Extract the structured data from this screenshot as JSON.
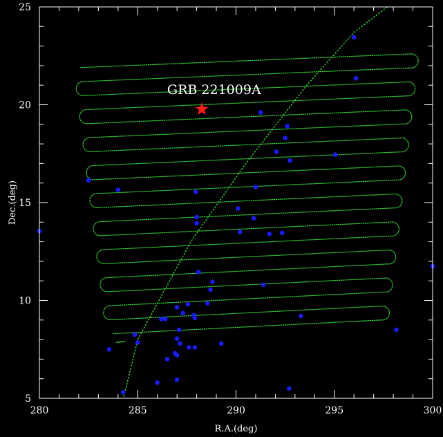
{
  "chart_data": {
    "type": "scatter",
    "title": "",
    "xlabel": "R.A.(deg)",
    "ylabel": "Dec.(deg)",
    "xlim": [
      280,
      300
    ],
    "ylim": [
      5,
      25
    ],
    "xticks": [
      "280",
      "285",
      "290",
      "295",
      "300"
    ],
    "yticks": [
      "5",
      "10",
      "15",
      "20",
      "25"
    ],
    "grid": false,
    "background": "#000000",
    "annotation": {
      "text": "GRB 221009A",
      "x": 286.5,
      "y": 20.8
    },
    "grb": {
      "name": "GRB 221009A",
      "ra": 288.26,
      "dec": 19.77,
      "color": "#ff1a1a",
      "marker": "star"
    },
    "scan_pattern": {
      "color": "#33cc33",
      "style": "dotted",
      "rows": 20,
      "dec_start": 8.3,
      "dec_end": 21.9,
      "left_start_ra": 283.75,
      "left_end_ra": 282.1,
      "right_start_ra": 297.4,
      "right_end_ra": 298.95,
      "row_tilt_dec": 0.7
    },
    "diagonal_track": {
      "color": "#33cc33",
      "style": "dotted",
      "points": [
        [
          284.3,
          5.1
        ],
        [
          285.0,
          8.0
        ],
        [
          287.7,
          13.0
        ],
        [
          290.5,
          17.0
        ],
        [
          293.6,
          21.0
        ],
        [
          296.0,
          23.7
        ],
        [
          299.0,
          26.0
        ]
      ]
    },
    "start_segment": {
      "color": "#33cc33",
      "points": [
        [
          283.9,
          7.85
        ],
        [
          284.35,
          7.9
        ]
      ]
    },
    "series": [
      {
        "name": "",
        "color": "#1a1aff",
        "points": [
          [
            280.0,
            13.55
          ],
          [
            282.5,
            16.15
          ],
          [
            283.55,
            7.5
          ],
          [
            284.0,
            15.65
          ],
          [
            284.25,
            5.3
          ],
          [
            284.85,
            8.25
          ],
          [
            285.0,
            7.85
          ],
          [
            286.0,
            5.8
          ],
          [
            286.2,
            9.05
          ],
          [
            286.4,
            9.05
          ],
          [
            286.5,
            7.0
          ],
          [
            286.9,
            7.3
          ],
          [
            287.0,
            7.2
          ],
          [
            287.0,
            5.95
          ],
          [
            287.0,
            9.65
          ],
          [
            287.0,
            8.05
          ],
          [
            287.1,
            8.5
          ],
          [
            287.15,
            7.8
          ],
          [
            287.3,
            9.35
          ],
          [
            287.55,
            9.8
          ],
          [
            287.6,
            7.6
          ],
          [
            287.85,
            9.25
          ],
          [
            287.9,
            9.1
          ],
          [
            287.9,
            7.6
          ],
          [
            287.95,
            15.55
          ],
          [
            288.0,
            14.25
          ],
          [
            288.0,
            13.95
          ],
          [
            288.1,
            11.45
          ],
          [
            288.55,
            9.85
          ],
          [
            288.7,
            10.55
          ],
          [
            288.8,
            10.95
          ],
          [
            289.25,
            7.8
          ],
          [
            290.1,
            14.7
          ],
          [
            290.2,
            13.5
          ],
          [
            290.9,
            14.2
          ],
          [
            291.0,
            15.8
          ],
          [
            291.25,
            19.6
          ],
          [
            291.4,
            10.8
          ],
          [
            291.7,
            13.4
          ],
          [
            292.05,
            17.6
          ],
          [
            292.35,
            13.45
          ],
          [
            292.5,
            18.3
          ],
          [
            292.6,
            18.9
          ],
          [
            292.7,
            5.5
          ],
          [
            292.75,
            17.15
          ],
          [
            293.3,
            9.2
          ],
          [
            295.05,
            17.45
          ],
          [
            296.0,
            23.45
          ],
          [
            296.1,
            21.35
          ],
          [
            298.15,
            8.5
          ],
          [
            300.0,
            11.75
          ]
        ]
      }
    ]
  }
}
